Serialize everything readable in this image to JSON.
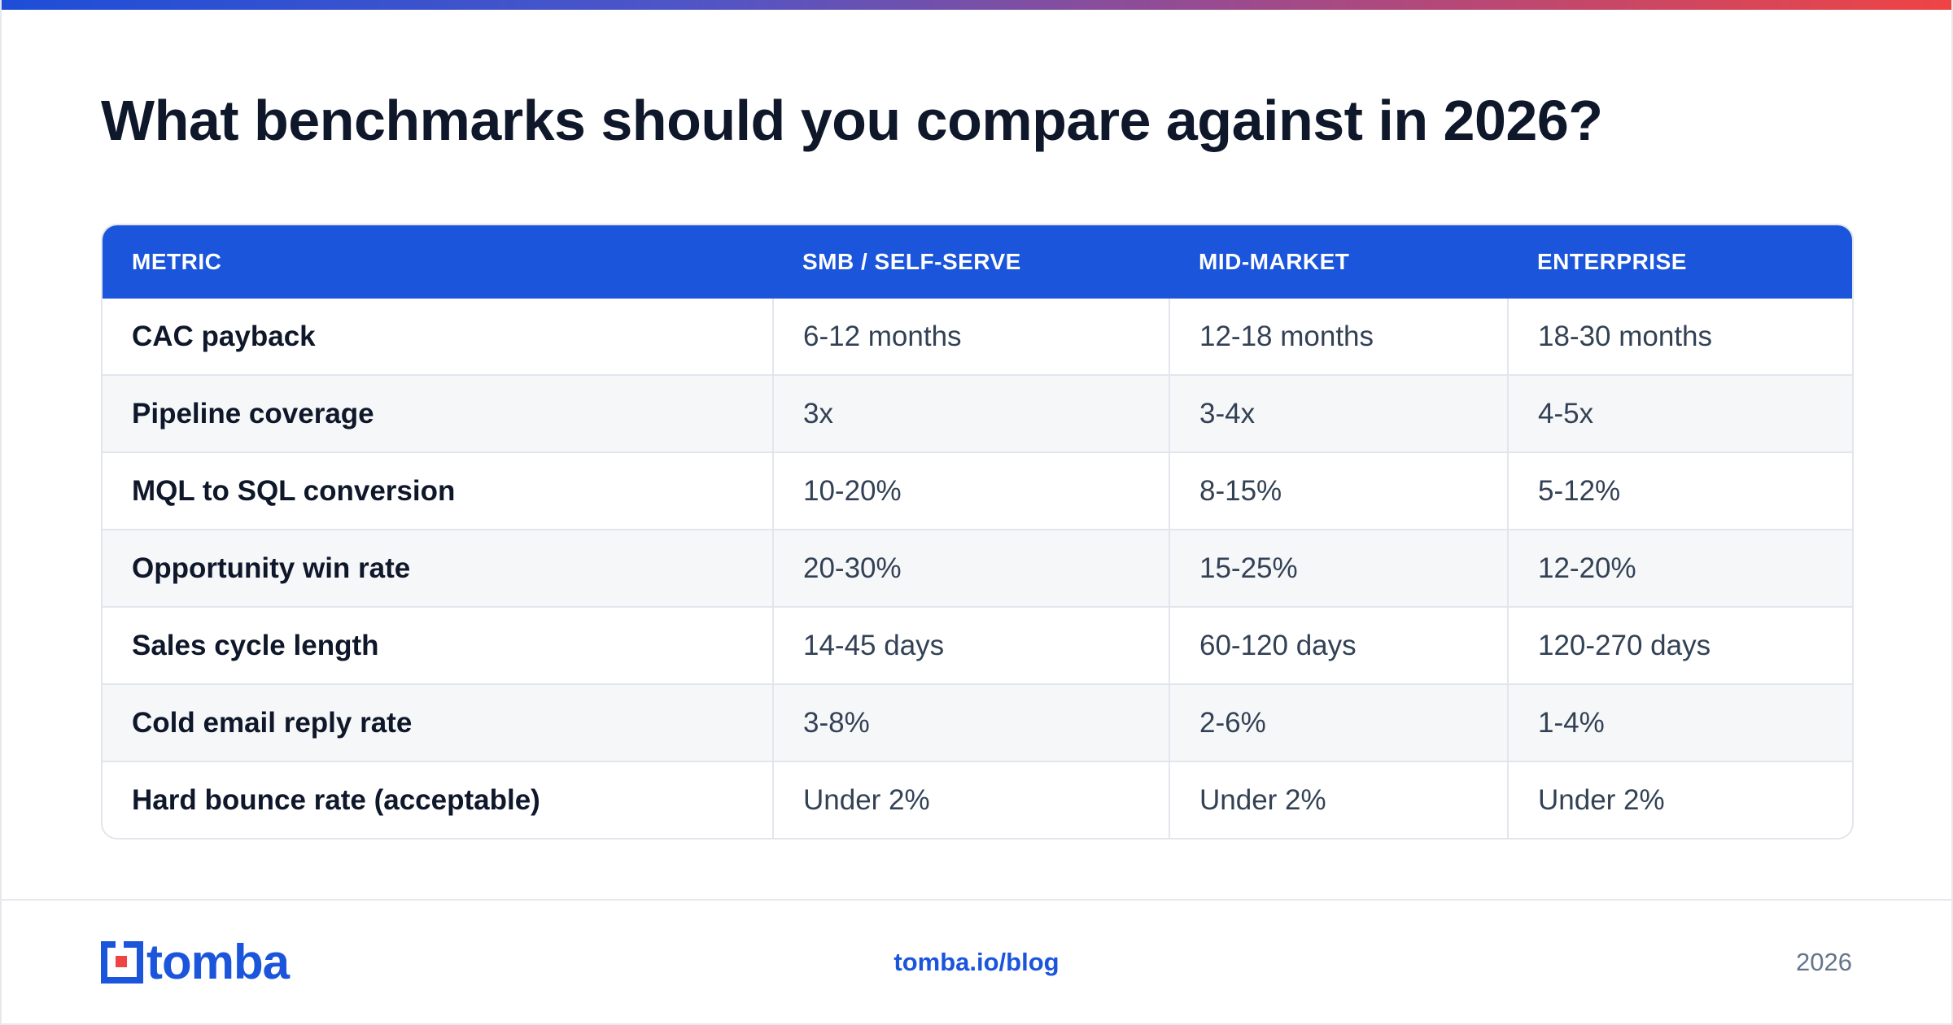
{
  "title": "What benchmarks should you compare against in 2026?",
  "colors": {
    "accent": "#1a55dc",
    "heading": "#0f172a",
    "body_text": "#334155",
    "muted": "#64748b",
    "gradient_start": "#1d4ed8",
    "gradient_end": "#ef4444"
  },
  "table": {
    "headers": [
      "METRIC",
      "SMB / SELF-SERVE",
      "MID-MARKET",
      "ENTERPRISE"
    ],
    "rows": [
      [
        "CAC payback",
        "6-12 months",
        "12-18 months",
        "18-30 months"
      ],
      [
        "Pipeline coverage",
        "3x",
        "3-4x",
        "4-5x"
      ],
      [
        "MQL to SQL conversion",
        "10-20%",
        "8-15%",
        "5-12%"
      ],
      [
        "Opportunity win rate",
        "20-30%",
        "15-25%",
        "12-20%"
      ],
      [
        "Sales cycle length",
        "14-45 days",
        "60-120 days",
        "120-270 days"
      ],
      [
        "Cold email reply rate",
        "3-8%",
        "2-6%",
        "1-4%"
      ],
      [
        "Hard bounce rate (acceptable)",
        "Under 2%",
        "Under 2%",
        "Under 2%"
      ]
    ]
  },
  "footer": {
    "logo_text": "tomba",
    "logo_icon": "tomba-logo-icon",
    "link": "tomba.io/blog",
    "year": "2026"
  }
}
